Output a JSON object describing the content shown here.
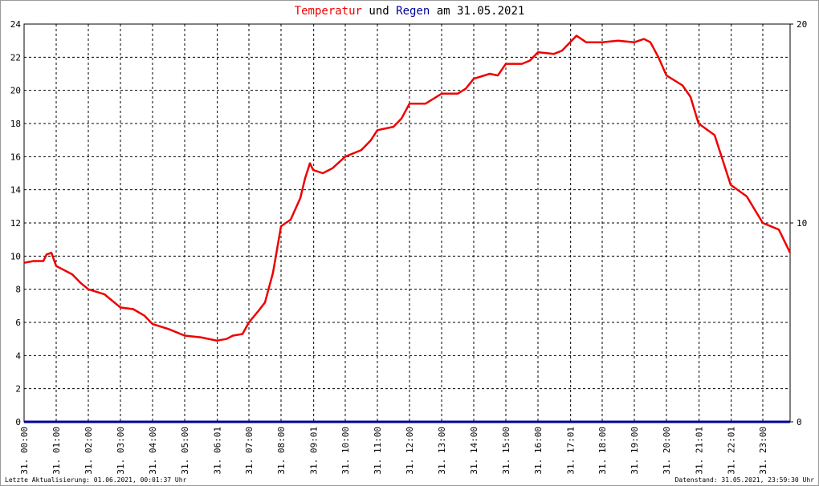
{
  "chart_data": {
    "type": "line",
    "title": [
      "Temperatur",
      "und",
      "Regen",
      "am 31.05.2021"
    ],
    "x": [
      0,
      0.3,
      0.6,
      0.7,
      0.85,
      1.0,
      1.5,
      1.75,
      2.0,
      2.5,
      3.0,
      3.4,
      3.75,
      4.0,
      4.5,
      5.0,
      5.5,
      6.0,
      6.3,
      6.5,
      6.8,
      7.0,
      7.3,
      7.5,
      7.75,
      8.0,
      8.3,
      8.6,
      8.75,
      8.9,
      9.0,
      9.3,
      9.6,
      10.0,
      10.5,
      10.8,
      11.0,
      11.5,
      11.75,
      12.0,
      12.5,
      12.75,
      13.0,
      13.5,
      13.75,
      14.0,
      14.5,
      14.75,
      15.0,
      15.5,
      15.75,
      16.0,
      16.5,
      16.75,
      17.0,
      17.2,
      17.5,
      18.0,
      18.5,
      19.0,
      19.3,
      19.5,
      19.75,
      20.0,
      20.5,
      20.75,
      21.0,
      21.5,
      21.75,
      22.0,
      22.5,
      22.75,
      23.0,
      23.5,
      23.85
    ],
    "series": [
      {
        "name": "Temperatur",
        "color": "#ee0000",
        "values": [
          9.6,
          9.7,
          9.7,
          10.1,
          10.2,
          9.4,
          8.9,
          8.4,
          8.0,
          7.7,
          6.9,
          6.8,
          6.4,
          5.9,
          5.6,
          5.2,
          5.1,
          4.9,
          5.0,
          5.2,
          5.3,
          6.0,
          6.7,
          7.2,
          9.0,
          11.8,
          12.2,
          13.5,
          14.7,
          15.6,
          15.2,
          15.0,
          15.3,
          16.0,
          16.4,
          17.0,
          17.6,
          17.8,
          18.3,
          19.2,
          19.2,
          19.5,
          19.8,
          19.8,
          20.1,
          20.7,
          21.0,
          20.9,
          21.6,
          21.6,
          21.8,
          22.3,
          22.2,
          22.4,
          22.9,
          23.3,
          22.9,
          22.9,
          23.0,
          22.9,
          23.1,
          22.9,
          22.0,
          20.9,
          20.3,
          19.6,
          18.0,
          17.3,
          15.8,
          14.3,
          13.6,
          12.8,
          12.0,
          11.6,
          10.2
        ]
      },
      {
        "name": "Regen",
        "color": "#000099",
        "axis": "y2",
        "values": [
          0,
          0,
          0,
          0,
          0,
          0,
          0,
          0,
          0,
          0,
          0,
          0,
          0,
          0,
          0,
          0,
          0,
          0,
          0,
          0,
          0,
          0,
          0,
          0,
          0,
          0,
          0,
          0,
          0,
          0,
          0,
          0,
          0,
          0,
          0,
          0,
          0,
          0,
          0,
          0,
          0,
          0,
          0,
          0,
          0,
          0,
          0,
          0,
          0,
          0,
          0,
          0,
          0,
          0,
          0,
          0,
          0,
          0,
          0,
          0,
          0,
          0,
          0,
          0,
          0,
          0,
          0,
          0,
          0,
          0,
          0,
          0,
          0,
          0,
          0
        ]
      }
    ],
    "xlim": [
      0,
      23.85
    ],
    "xticks": [
      {
        "value": 0,
        "label": "31. 00:00"
      },
      {
        "value": 1,
        "label": "31. 01:00"
      },
      {
        "value": 2,
        "label": "31. 02:00"
      },
      {
        "value": 3,
        "label": "31. 03:00"
      },
      {
        "value": 4,
        "label": "31. 04:00"
      },
      {
        "value": 5,
        "label": "31. 05:00"
      },
      {
        "value": 6.0167,
        "label": "31. 06:01"
      },
      {
        "value": 7,
        "label": "31. 07:00"
      },
      {
        "value": 8,
        "label": "31. 08:00"
      },
      {
        "value": 9.0167,
        "label": "31. 09:01"
      },
      {
        "value": 10,
        "label": "31. 10:00"
      },
      {
        "value": 11,
        "label": "31. 11:00"
      },
      {
        "value": 12,
        "label": "31. 12:00"
      },
      {
        "value": 13,
        "label": "31. 13:00"
      },
      {
        "value": 14,
        "label": "31. 14:00"
      },
      {
        "value": 15,
        "label": "31. 15:00"
      },
      {
        "value": 16,
        "label": "31. 16:00"
      },
      {
        "value": 17.0167,
        "label": "31. 17:01"
      },
      {
        "value": 18,
        "label": "31. 18:00"
      },
      {
        "value": 19,
        "label": "31. 19:00"
      },
      {
        "value": 20,
        "label": "31. 20:00"
      },
      {
        "value": 21.0167,
        "label": "31. 21:01"
      },
      {
        "value": 22.0167,
        "label": "31. 22:01"
      },
      {
        "value": 23,
        "label": "31. 23:00"
      }
    ],
    "ylim": [
      0,
      24
    ],
    "yticks": [
      0,
      2,
      4,
      6,
      8,
      10,
      12,
      14,
      16,
      18,
      20,
      22,
      24
    ],
    "y2lim": [
      0,
      20
    ],
    "y2ticks": [
      0,
      10,
      20
    ],
    "grid": true,
    "footnotes": [
      "Letzte Aktualisierung: 01.06.2021, 00:01:37 Uhr",
      "Datenstand: 31.05.2021, 23:59:30 Uhr"
    ]
  }
}
